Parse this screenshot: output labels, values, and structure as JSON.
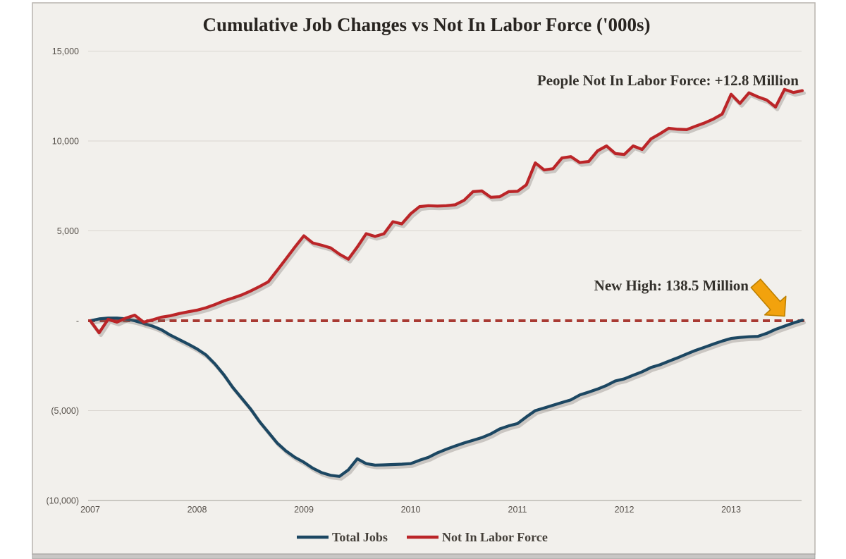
{
  "chart_data": {
    "type": "line",
    "title": "Cumulative Job Changes vs Not In Labor Force  ('000s)",
    "xlabel": "",
    "ylabel": "",
    "ylim": [
      -10000,
      15000
    ],
    "grid": true,
    "legend_position": "bottom",
    "x_ticks": [
      "2007",
      "2008",
      "2009",
      "2010",
      "2011",
      "2012",
      "2013"
    ],
    "y_ticks": [
      {
        "label": "15,000",
        "value": 15000
      },
      {
        "label": "10,000",
        "value": 10000
      },
      {
        "label": "5,000",
        "value": 5000
      },
      {
        "label": "-",
        "value": 0
      },
      {
        "label": "(5,000)",
        "value": -5000
      },
      {
        "label": "(10,000)",
        "value": -10000
      }
    ],
    "x_unit": "months since Jan 2007",
    "reference_line": {
      "value": 0,
      "style": "dashed",
      "color": "#a93a33"
    },
    "series": [
      {
        "name": "Total Jobs",
        "color": "#1c4762",
        "values": [
          0,
          100,
          150,
          150,
          100,
          0,
          -150,
          -300,
          -500,
          -800,
          -1050,
          -1300,
          -1570,
          -1900,
          -2400,
          -3000,
          -3700,
          -4300,
          -4900,
          -5600,
          -6200,
          -6800,
          -7250,
          -7600,
          -7870,
          -8200,
          -8450,
          -8600,
          -8660,
          -8300,
          -7680,
          -7950,
          -8030,
          -8020,
          -8000,
          -7980,
          -7950,
          -7760,
          -7600,
          -7350,
          -7150,
          -6970,
          -6800,
          -6650,
          -6500,
          -6300,
          -6020,
          -5850,
          -5720,
          -5350,
          -5000,
          -4850,
          -4700,
          -4550,
          -4400,
          -4130,
          -3970,
          -3800,
          -3600,
          -3350,
          -3230,
          -3030,
          -2840,
          -2600,
          -2450,
          -2250,
          -2060,
          -1850,
          -1650,
          -1480,
          -1300,
          -1130,
          -985,
          -930,
          -890,
          -870,
          -700,
          -480,
          -300,
          -120,
          30
        ]
      },
      {
        "name": "Not In Labor Force",
        "color": "#bb2528",
        "values": [
          0,
          -670,
          80,
          -80,
          150,
          310,
          -80,
          50,
          200,
          280,
          400,
          500,
          590,
          720,
          900,
          1100,
          1260,
          1430,
          1650,
          1900,
          2165,
          2800,
          3450,
          4100,
          4724,
          4330,
          4200,
          4055,
          3700,
          3425,
          4100,
          4843,
          4690,
          4840,
          5510,
          5390,
          5950,
          6350,
          6400,
          6380,
          6400,
          6450,
          6700,
          7180,
          7220,
          6870,
          6900,
          7180,
          7200,
          7560,
          8780,
          8390,
          8460,
          9055,
          9130,
          8800,
          8860,
          9450,
          9724,
          9300,
          9250,
          9724,
          9530,
          10118,
          10400,
          10709,
          10650,
          10630,
          10820,
          11000,
          11220,
          11500,
          12600,
          12090,
          12680,
          12460,
          12280,
          11890,
          12870,
          12700,
          12800
        ]
      }
    ],
    "annotations": [
      {
        "text": "People Not In Labor Force: +12.8 Million"
      },
      {
        "text": "New High: 138.5 Million"
      }
    ]
  },
  "legend": [
    {
      "label": "Total Jobs",
      "color": "#1c4762"
    },
    {
      "label": "Not In Labor Force",
      "color": "#bb2528"
    }
  ],
  "style_colors": {
    "panel_background": "#f2f0ec",
    "panel_border": "#b8b4ae",
    "gridline": "#dad6d0",
    "axis_line": "#b3afa9",
    "arrow_fill": "#f2a20d",
    "arrow_stroke": "#bd8000",
    "bottom_strip": "#c9c7c5"
  }
}
